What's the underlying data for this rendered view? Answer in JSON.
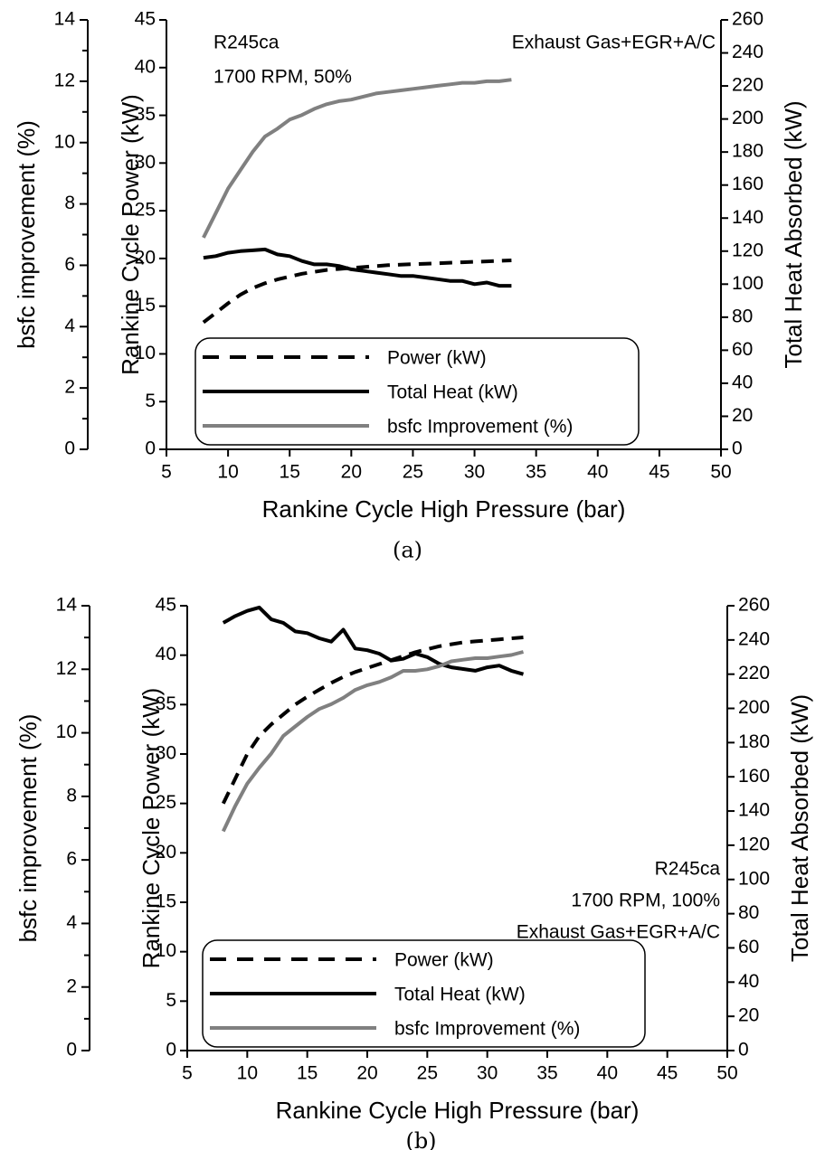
{
  "chart_data": [
    {
      "type": "line",
      "caption": "(a)",
      "xlabel": "Rankine Cycle High Pressure (bar)",
      "ylabel": "Rankine Cycle Power (kW)",
      "y2label": "Total Heat Absorbed (kW)",
      "y3label": "bsfc improvement (%)",
      "xlim": [
        5,
        50
      ],
      "ylim": [
        0,
        45
      ],
      "y2lim": [
        0,
        260
      ],
      "y3lim": [
        0,
        14
      ],
      "xticks": [
        5,
        10,
        15,
        20,
        25,
        30,
        35,
        40,
        45,
        50
      ],
      "yticks": [
        0,
        5,
        10,
        15,
        20,
        25,
        30,
        35,
        40,
        45
      ],
      "y2ticks": [
        0,
        20,
        40,
        60,
        80,
        100,
        120,
        140,
        160,
        180,
        200,
        220,
        240,
        260
      ],
      "y3ticks": [
        0,
        2,
        4,
        6,
        8,
        10,
        12,
        14
      ],
      "annotations": [
        "R245ca",
        "1700 RPM, 50%",
        "Exhaust Gas+EGR+A/C"
      ],
      "legend_position": "lower-left",
      "series": [
        {
          "name": "Power (kW)",
          "axis": "left",
          "style": "dashed",
          "color": "#000000",
          "x": [
            8,
            9,
            10,
            11,
            12,
            13,
            14,
            15,
            16,
            17,
            18,
            19,
            20,
            21,
            22,
            23,
            24,
            25,
            26,
            27,
            28,
            29,
            30,
            31,
            32,
            33
          ],
          "y": [
            13.3,
            14.3,
            15.3,
            16.2,
            16.9,
            17.4,
            17.8,
            18.1,
            18.4,
            18.6,
            18.8,
            18.9,
            19.0,
            19.1,
            19.2,
            19.3,
            19.35,
            19.4,
            19.45,
            19.5,
            19.55,
            19.6,
            19.65,
            19.7,
            19.75,
            19.8
          ]
        },
        {
          "name": "Total Heat (kW)",
          "axis": "right",
          "style": "solid",
          "color": "#000000",
          "x": [
            8,
            9,
            10,
            11,
            12,
            13,
            14,
            15,
            16,
            17,
            18,
            19,
            20,
            21,
            22,
            23,
            24,
            25,
            26,
            27,
            28,
            29,
            30,
            31,
            32,
            33
          ],
          "y": [
            116,
            117,
            119,
            120,
            120.5,
            121,
            118,
            117,
            114,
            112,
            112,
            111,
            109,
            108,
            107,
            106,
            105,
            105,
            104,
            103,
            102,
            102,
            100,
            101,
            99,
            99
          ]
        },
        {
          "name": "bsfc Improvement (%)",
          "axis": "far-left",
          "style": "solid",
          "color": "#808080",
          "x": [
            8,
            9,
            10,
            11,
            12,
            13,
            14,
            15,
            16,
            17,
            18,
            19,
            20,
            21,
            22,
            23,
            24,
            25,
            26,
            27,
            28,
            29,
            30,
            31,
            32,
            33
          ],
          "y": [
            6.9,
            7.7,
            8.5,
            9.1,
            9.7,
            10.2,
            10.45,
            10.75,
            10.9,
            11.1,
            11.25,
            11.35,
            11.4,
            11.5,
            11.6,
            11.65,
            11.7,
            11.75,
            11.8,
            11.85,
            11.9,
            11.95,
            11.95,
            12.0,
            12.0,
            12.05
          ]
        }
      ]
    },
    {
      "type": "line",
      "caption": "(b)",
      "xlabel": "Rankine Cycle High Pressure (bar)",
      "ylabel": "Rankine Cycle Power (kW)",
      "y2label": "Total Heat Absorbed (kW)",
      "y3label": "bsfc improvement (%)",
      "xlim": [
        5,
        50
      ],
      "ylim": [
        0,
        45
      ],
      "y2lim": [
        0,
        260
      ],
      "y3lim": [
        0,
        14
      ],
      "xticks": [
        5,
        10,
        15,
        20,
        25,
        30,
        35,
        40,
        45,
        50
      ],
      "yticks": [
        0,
        5,
        10,
        15,
        20,
        25,
        30,
        35,
        40,
        45
      ],
      "y2ticks": [
        0,
        20,
        40,
        60,
        80,
        100,
        120,
        140,
        160,
        180,
        200,
        220,
        240,
        260
      ],
      "y3ticks": [
        0,
        2,
        4,
        6,
        8,
        10,
        12,
        14
      ],
      "annotations": [
        "R245ca",
        "1700 RPM, 100%",
        "Exhaust Gas+EGR+A/C"
      ],
      "legend_position": "lower-left",
      "series": [
        {
          "name": "Power (kW)",
          "axis": "left",
          "style": "dashed",
          "color": "#000000",
          "x": [
            8,
            9,
            10,
            11,
            12,
            13,
            14,
            15,
            16,
            17,
            18,
            19,
            20,
            21,
            22,
            23,
            24,
            25,
            26,
            27,
            28,
            29,
            30,
            31,
            32,
            33
          ],
          "y": [
            25,
            27.5,
            30,
            31.8,
            33,
            34,
            35,
            35.8,
            36.5,
            37.2,
            37.8,
            38.3,
            38.7,
            39.1,
            39.5,
            39.9,
            40.3,
            40.6,
            40.9,
            41.1,
            41.3,
            41.4,
            41.5,
            41.6,
            41.7,
            41.8
          ]
        },
        {
          "name": "Total Heat (kW)",
          "axis": "right",
          "style": "solid",
          "color": "#000000",
          "x": [
            8,
            9,
            10,
            11,
            12,
            13,
            14,
            15,
            16,
            17,
            18,
            19,
            20,
            21,
            22,
            23,
            24,
            25,
            26,
            27,
            28,
            29,
            30,
            31,
            32,
            33
          ],
          "y": [
            250,
            254,
            257,
            259,
            252,
            250,
            245,
            244,
            241,
            239,
            246,
            235,
            234,
            232,
            228,
            229,
            232,
            230,
            226,
            224,
            223,
            222,
            224,
            225,
            222,
            220
          ]
        },
        {
          "name": "bsfc Improvement (%)",
          "axis": "far-left",
          "style": "solid",
          "color": "#808080",
          "x": [
            8,
            9,
            10,
            11,
            12,
            13,
            14,
            15,
            16,
            17,
            18,
            19,
            20,
            21,
            22,
            23,
            24,
            25,
            26,
            27,
            28,
            29,
            30,
            31,
            32,
            33
          ],
          "y": [
            6.9,
            7.7,
            8.4,
            8.9,
            9.35,
            9.9,
            10.2,
            10.5,
            10.75,
            10.9,
            11.1,
            11.35,
            11.5,
            11.6,
            11.75,
            11.95,
            11.95,
            12.0,
            12.1,
            12.25,
            12.3,
            12.35,
            12.35,
            12.4,
            12.45,
            12.55
          ]
        }
      ]
    }
  ]
}
